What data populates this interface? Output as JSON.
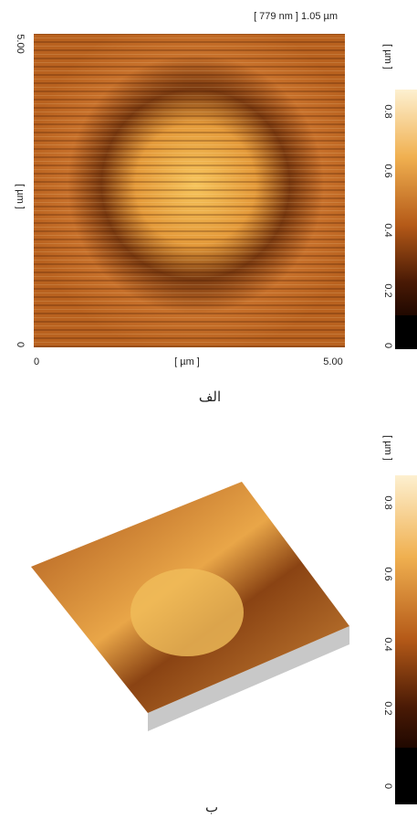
{
  "panel_a": {
    "range_label": "[ 779 nm ] 1.05 µm",
    "y_top": "5.00",
    "y_label": "[ µm ]",
    "y_bottom": "0",
    "x_left": "0",
    "x_label": "[ µm ]",
    "x_right": "5.00",
    "colorbar": {
      "unit": "[ µm ]",
      "ticks": [
        "0.8",
        "0.6",
        "0.4",
        "0.2",
        "0"
      ]
    },
    "caption": "الف"
  },
  "panel_b": {
    "colorbar": {
      "unit": "[ µm ]",
      "ticks": [
        "0.8",
        "0.6",
        "0.4",
        "0.2",
        "0"
      ]
    },
    "caption": "ب"
  }
}
